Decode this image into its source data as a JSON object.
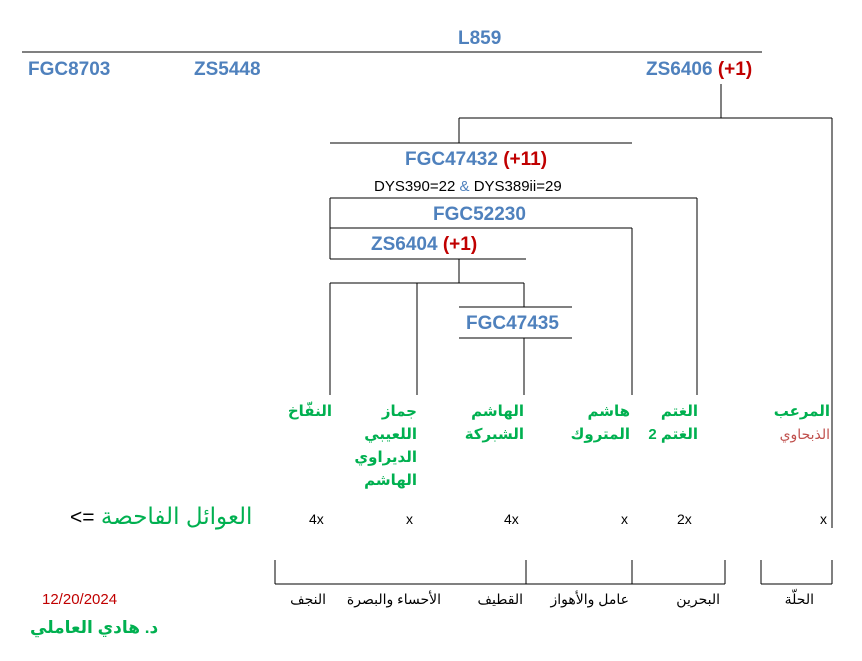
{
  "snps": {
    "root": "L859",
    "left1": "FGC8703",
    "left2": "ZS5448",
    "right": "ZS6406",
    "right_count": "(+1)",
    "fgc47432": "FGC47432",
    "fgc47432_count": "(+11)",
    "dys_a": "DYS390=22",
    "dys_amp": "&",
    "dys_b": "DYS389ii=29",
    "fgc52230": "FGC52230",
    "zs6404": "ZS6404",
    "zs6404_count": "(+1)",
    "fgc47435": "FGC47435"
  },
  "families": [
    {
      "id": "nakhkhakh",
      "lines": [
        "النفّاخ"
      ],
      "multiplier": "4x"
    },
    {
      "id": "jammaz",
      "lines": [
        "جماز",
        "اللعيبي",
        "الديراوي",
        "الهاشم"
      ],
      "multiplier": "x"
    },
    {
      "id": "hashem-shabaka",
      "lines": [
        "الهاشم",
        "الشبركة"
      ],
      "multiplier": "4x"
    },
    {
      "id": "hashem-matrouk",
      "lines": [
        "هاشم",
        "المتروك"
      ],
      "multiplier": "x"
    },
    {
      "id": "ghatam",
      "lines": [
        "الغتم",
        "الغتم 2"
      ],
      "multiplier": "2x"
    },
    {
      "id": "murab",
      "lines": [
        "المرعب"
      ],
      "subline": "الذبحاوي",
      "multiplier": "x"
    }
  ],
  "legend": {
    "arrow": "<=",
    "label": "العوائل الفاحصة"
  },
  "regions": [
    "النجف",
    "الأحساء والبصرة",
    "القطيف",
    "عامل والأهواز",
    "البحرين",
    "الحلّة"
  ],
  "footer": {
    "date": "12/20/2024",
    "author": "د. هادي العاملي"
  },
  "colors": {
    "snp_blue": "#4f81bd",
    "count_red": "#c00000",
    "family_green": "#00b050",
    "subline_darkred": "#c0504d"
  }
}
